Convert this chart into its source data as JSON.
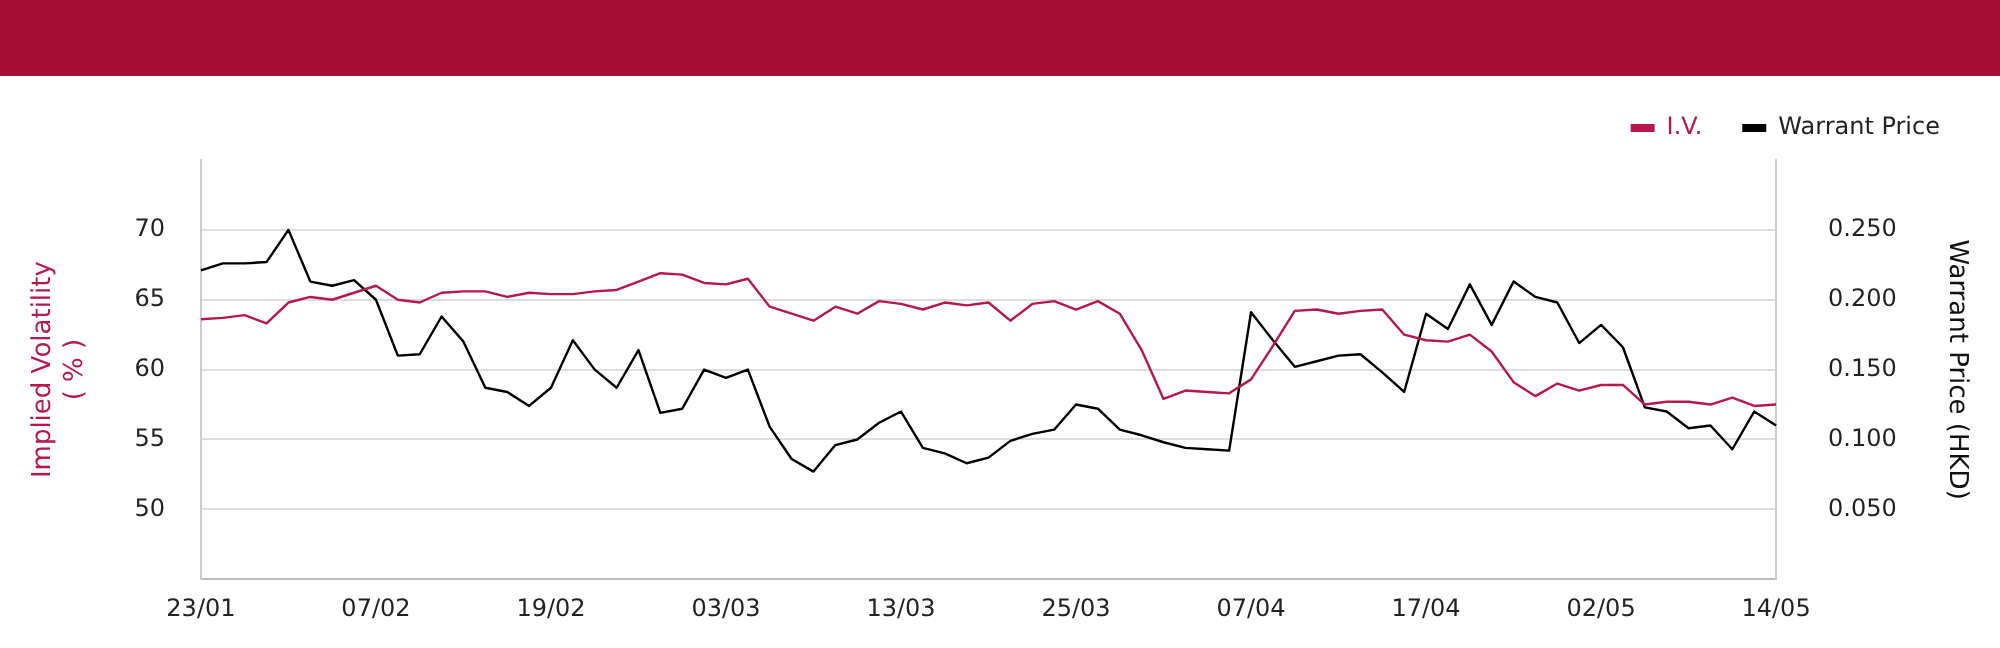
{
  "chart_data": {
    "type": "line",
    "categories": [
      "23/01",
      null,
      null,
      null,
      null,
      null,
      null,
      null,
      "07/02",
      null,
      null,
      null,
      null,
      null,
      null,
      null,
      "19/02",
      null,
      null,
      null,
      null,
      null,
      null,
      null,
      "03/03",
      null,
      null,
      null,
      null,
      null,
      null,
      null,
      "13/03",
      null,
      null,
      null,
      null,
      null,
      null,
      null,
      "25/03",
      null,
      null,
      null,
      null,
      null,
      null,
      null,
      "07/04",
      null,
      null,
      null,
      null,
      null,
      null,
      null,
      "17/04",
      null,
      null,
      null,
      null,
      null,
      null,
      null,
      "02/05",
      null,
      null,
      null,
      null,
      null,
      null,
      null,
      "14/05"
    ],
    "series": [
      {
        "name": "I.V.",
        "color": "#b5184a",
        "values": [
          63.6,
          63.7,
          63.9,
          63.3,
          64.8,
          65.2,
          65.0,
          65.5,
          66.0,
          65.0,
          64.8,
          65.5,
          65.6,
          65.6,
          65.2,
          65.5,
          65.4,
          65.4,
          65.6,
          65.7,
          66.3,
          66.9,
          66.8,
          66.2,
          66.1,
          66.5,
          64.5,
          64.0,
          63.5,
          64.5,
          64.0,
          64.9,
          64.7,
          64.3,
          64.8,
          64.6,
          64.8,
          63.5,
          64.7,
          64.9,
          64.3,
          64.9,
          64.0,
          61.4,
          57.9,
          58.5,
          58.4,
          58.3,
          59.3,
          61.7,
          64.2,
          64.3,
          64.0,
          64.2,
          64.3,
          62.5,
          62.1,
          62.0,
          62.5,
          61.3,
          59.1,
          58.1,
          59.0,
          58.5,
          58.9,
          58.9,
          57.5,
          57.7,
          57.7,
          57.5,
          58.0,
          57.4,
          57.5
        ]
      },
      {
        "name": "Warrant Price",
        "color": "#000000",
        "axis": "y2",
        "values": [
          0.221,
          0.226,
          0.226,
          0.227,
          0.25,
          0.213,
          0.21,
          0.214,
          0.2,
          0.16,
          0.161,
          0.188,
          0.17,
          0.137,
          0.134,
          0.124,
          0.137,
          0.171,
          0.15,
          0.137,
          0.164,
          0.119,
          0.122,
          0.15,
          0.144,
          0.15,
          0.109,
          0.086,
          0.077,
          0.096,
          0.1,
          0.112,
          0.12,
          0.094,
          0.09,
          0.083,
          0.087,
          0.099,
          0.104,
          0.107,
          0.125,
          0.122,
          0.107,
          0.103,
          0.098,
          0.094,
          0.093,
          0.092,
          0.191,
          0.171,
          0.152,
          0.156,
          0.16,
          0.161,
          0.148,
          0.134,
          0.19,
          0.179,
          0.211,
          0.182,
          0.213,
          0.202,
          0.198,
          0.169,
          0.182,
          0.166,
          0.123,
          0.12,
          0.108,
          0.11,
          0.093,
          0.12,
          0.11
        ]
      }
    ],
    "ylabel": "Implied Volatility ( % )",
    "y2label": "Warrant Price (HKD)",
    "ylim": [
      45,
      75
    ],
    "yticks": [
      50,
      55,
      60,
      65,
      70
    ],
    "y2lim": [
      0,
      0.3
    ],
    "y2ticks": [
      {
        "value": 0.05,
        "label": "0.050"
      },
      {
        "value": 0.1,
        "label": "0.100"
      },
      {
        "value": 0.15,
        "label": "0.150"
      },
      {
        "value": 0.2,
        "label": "0.200"
      },
      {
        "value": 0.25,
        "label": "0.250"
      }
    ],
    "grid": "y",
    "legend": "top right",
    "marker": "none",
    "line_style": "solid"
  }
}
